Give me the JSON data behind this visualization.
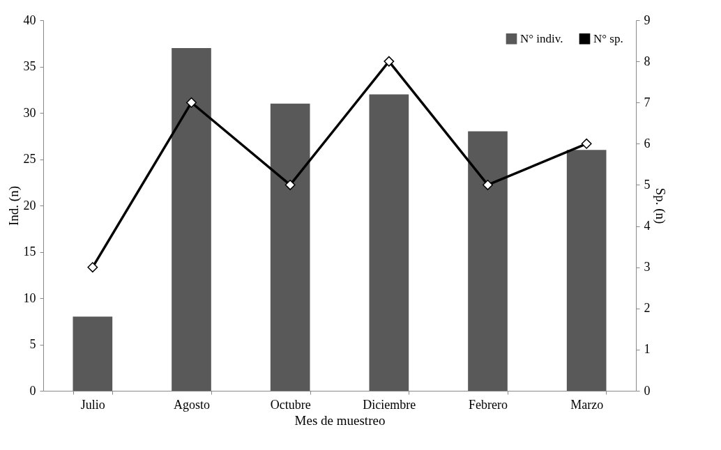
{
  "chart_data": {
    "type": "bar",
    "xlabel": "Mes de muestreo",
    "ylabel": "Ind. (n)",
    "y2label": "Sp. (n)",
    "categories": [
      "Julio",
      "Agosto",
      "Octubre",
      "Diciembre",
      "Febrero",
      "Marzo"
    ],
    "series": [
      {
        "name": "N° indiv.",
        "color": "#595959",
        "values": [
          8,
          37,
          31,
          32,
          28,
          26
        ]
      },
      {
        "name": "N° sp.",
        "type": "line",
        "axis": "y2",
        "color": "#000000",
        "values": [
          3,
          7,
          5,
          8,
          5,
          6
        ]
      }
    ],
    "ylim": [
      0,
      40
    ],
    "yticks": [
      0,
      5,
      10,
      15,
      20,
      25,
      30,
      35,
      40
    ],
    "y2lim": [
      0,
      9
    ],
    "y2ticks": [
      0,
      1,
      2,
      3,
      4,
      5,
      6,
      7,
      8,
      9
    ],
    "grid": false,
    "legend": "top right",
    "marker": "diamond",
    "line_style": "solid"
  }
}
